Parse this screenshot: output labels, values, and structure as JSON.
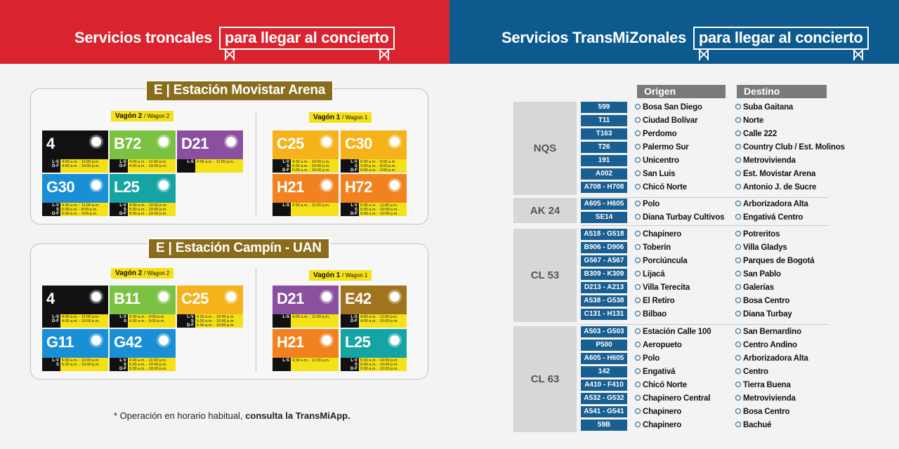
{
  "left_header": {
    "title_plain": "Servicios troncales",
    "title_boxed": "para llegar al concierto"
  },
  "right_header": {
    "title_plain": "Servicios TransMiZonales",
    "title_boxed": "para llegar al concierto"
  },
  "stations": [
    {
      "tag": "E | Estación Movistar  Arena",
      "wagon2": {
        "label": "Vagón 2",
        "en": "/ Wagon 2"
      },
      "wagon1": {
        "label": "Vagón 1",
        "en": "/ Wagon 1"
      },
      "routes": [
        {
          "code": "4",
          "color": "#111111",
          "days": "L-S\nD-F",
          "times": "4:00 a.m. - 11:00 p.m.\n4:00 a.m. - 10:00 p.m."
        },
        {
          "code": "B72",
          "color": "#7cc242",
          "days": "L-S\nD-F",
          "times": "4:00 a.m. - 11:00 p.m.\n4:00 a.m. - 10:00 p.m."
        },
        {
          "code": "D21",
          "color": "#8a4f9e",
          "days": "L-S",
          "times": "4:00 a.m. - 11:00 p.m."
        },
        {
          "code": "G30",
          "color": "#1b8fd6",
          "days": "L-V\nS\nD-F",
          "times": "4:30 a.m. - 11:00 p.m.\n5:00 p.m. - 8:00 p.m.\n5:00 a.m. - 3:00 p.m."
        },
        {
          "code": "L25",
          "color": "#14a4a4",
          "days": "L-V\nS\nD-F",
          "times": "4:30 a.m. - 10:00 p.m.\n5:00 a.m. - 10:00 p.m.\n5:00 a.m. - 10:00 p.m."
        },
        {
          "code": "C25",
          "color": "#f6b21a",
          "days": "L-V\nS\nD-F",
          "times": "4:30 a.m. - 10:00 p.m.\n5:00 a.m. - 10:00 p.m.\n5:00 a.m. - 10:00 p.m."
        },
        {
          "code": "C30",
          "color": "#f6b21a",
          "days": "L-V\nS\nD-F",
          "times": "5:00 a.m. - 9:00 a.m.\n3:00 p.m. - 8:00 p.m.\n5:00 a.m. - 3:00 p.m."
        },
        {
          "code": "H21",
          "color": "#f2821f",
          "days": "L-S",
          "times": "4:30 a.m. - 11:00 p.m."
        },
        {
          "code": "H72",
          "color": "#f2821f",
          "days": "L-V\nS\nD-F",
          "times": "5:30 a.m. - 11:00 p.m.\n5:00 a.m. - 10:00 p.m.\n5:00 a.m. - 10:00 p.m."
        }
      ]
    },
    {
      "tag": "E | Estación Campín - UAN",
      "wagon2": {
        "label": "Vagón 2",
        "en": "/ Wagon 2"
      },
      "wagon1": {
        "label": "Vagón 1",
        "en": "/ Wagon 1"
      },
      "routes": [
        {
          "code": "4",
          "color": "#111111",
          "days": "L-S\nD-F",
          "times": "4:00 a.m. - 11:00 p.m.\n4:00 a.m. - 10:00 p.m."
        },
        {
          "code": "B11",
          "color": "#7cc242",
          "days": "L-V\nS",
          "times": "5:00 a.m. - 9:00 p.m.\n6:00 a.m. - 9:00 p.m."
        },
        {
          "code": "C25",
          "color": "#f6b21a",
          "days": "L-V\nS\nD-F",
          "times": "4:30 a.m. - 10:00 p.m.\n5:00 a.m. - 10:00 p.m.\n5:00 a.m. - 10:00 p.m."
        },
        {
          "code": "G11",
          "color": "#1b8fd6",
          "days": "L-V\nS",
          "times": "6:00 a.m. - 10:00 p.m.\n6:30 a.m. - 10:00 p.m."
        },
        {
          "code": "G42",
          "color": "#1b8fd6",
          "days": "L-V\nS\nD-F",
          "times": "4:30 a.m. - 11:00 p.m.\n5:00 a.m. - 10:00 p.m.\n5:00 a.m. - 10:00 p.m."
        },
        {
          "code": "D21",
          "color": "#8a4f9e",
          "days": "L-S",
          "times": "4:00 a.m. - 11:00 p.m."
        },
        {
          "code": "E42",
          "color": "#a0741f",
          "days": "L-S\nD-F",
          "times": "4:00 a.m. - 11:00 p.m.\n4:00 a.m. - 10:00 p.m."
        },
        {
          "code": "H21",
          "color": "#f2821f",
          "days": "L-S",
          "times": "4:30 a.m. - 11:00 p.m."
        },
        {
          "code": "L25",
          "color": "#14a4a4",
          "days": "L-V\nS\nD-F",
          "times": "5:00 a.m. - 10:00 p.m.\n5:00 a.m. - 10:00 p.m.\n5:00 a.m. - 10:00 p.m."
        }
      ]
    }
  ],
  "footnote": {
    "plain": "* Operación en horario habitual, ",
    "bold": "consulta la TransMiApp."
  },
  "table": {
    "origin_header": "Origen",
    "dest_header": "Destino",
    "groups": [
      {
        "name": "NQS",
        "rows": [
          {
            "route": "599",
            "origin": "Bosa San Diego",
            "dest": "Suba Gaitana"
          },
          {
            "route": "T11",
            "origin": "Ciudad Bolívar",
            "dest": "Norte"
          },
          {
            "route": "T163",
            "origin": "Perdomo",
            "dest": "Calle 222"
          },
          {
            "route": "T26",
            "origin": "Palermo Sur",
            "dest": "Country Club / Est. Molinos"
          },
          {
            "route": "191",
            "origin": "Unicentro",
            "dest": "Metrovivienda"
          },
          {
            "route": "A002",
            "origin": "San Luis",
            "dest": "Est. Movistar Arena"
          },
          {
            "route": "A708 - H708",
            "origin": "Chicó Norte",
            "dest": "Antonio J. de Sucre"
          }
        ]
      },
      {
        "name": "AK 24",
        "rows": [
          {
            "route": "A605 - H605",
            "origin": "Polo",
            "dest": "Arborizadora Alta"
          },
          {
            "route": "SE14",
            "origin": "Diana Turbay Cultivos",
            "dest": "Engativá Centro"
          }
        ]
      },
      {
        "name": "CL 53",
        "rows": [
          {
            "route": "A518 - G518",
            "origin": "Chapinero",
            "dest": "Potreritos"
          },
          {
            "route": "B906 - D906",
            "origin": "Toberín",
            "dest": "Villa Gladys"
          },
          {
            "route": "G567 - A567",
            "origin": "Porciúncula",
            "dest": "Parques de Bogotá"
          },
          {
            "route": "B309 - K309",
            "origin": "Lijacá",
            "dest": "San Pablo"
          },
          {
            "route": "D213 - A213",
            "origin": "Villa Terecita",
            "dest": "Galerías"
          },
          {
            "route": "A538 - G538",
            "origin": "El Retiro",
            "dest": "Bosa Centro"
          },
          {
            "route": "C131 - H131",
            "origin": "Bilbao",
            "dest": "Diana Turbay"
          }
        ]
      },
      {
        "name": "CL 63",
        "rows": [
          {
            "route": "A503 - G503",
            "origin": "Estación Calle 100",
            "dest": "San Bernardino"
          },
          {
            "route": "P500",
            "origin": "Aeropueto",
            "dest": "Centro Andino"
          },
          {
            "route": "A605 - H605",
            "origin": "Polo",
            "dest": "Arborizadora Alta"
          },
          {
            "route": "142",
            "origin": "Engativá",
            "dest": "Centro"
          },
          {
            "route": "A410 - F410",
            "origin": "Chicó Norte",
            "dest": "Tierra Buena"
          },
          {
            "route": "A532 - G532",
            "origin": "Chapinero Central",
            "dest": "Metrovivienda"
          },
          {
            "route": "A541 - G541",
            "origin": "Chapinero",
            "dest": "Bosa Centro"
          },
          {
            "route": "59B",
            "origin": "Chapinero",
            "dest": "Bachué"
          }
        ]
      }
    ]
  }
}
